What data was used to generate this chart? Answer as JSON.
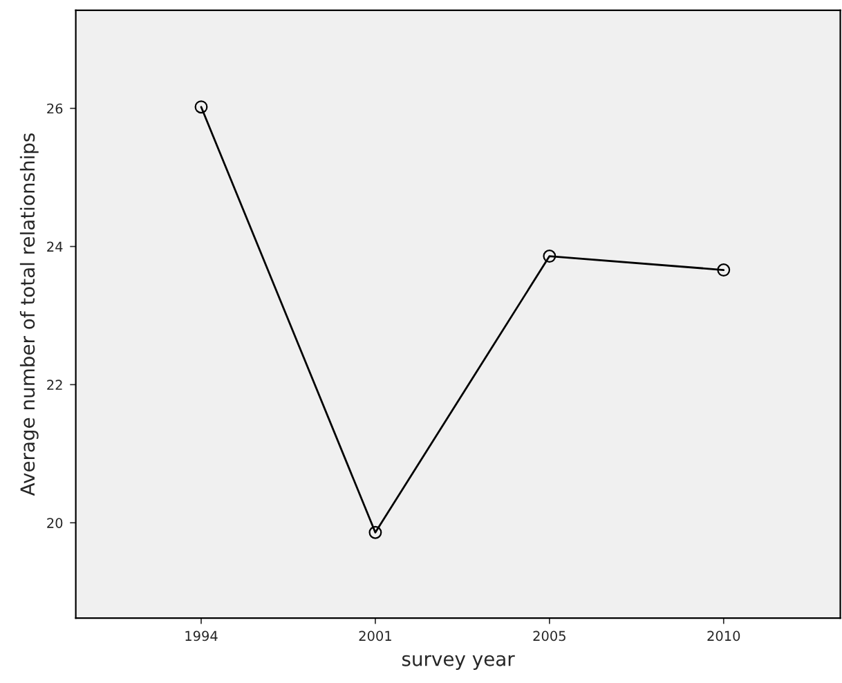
{
  "chart_data": {
    "type": "line",
    "xlabel": "survey year",
    "ylabel": "Average number of total relationships",
    "categories": [
      "1994",
      "2001",
      "2005",
      "2010"
    ],
    "series": [
      {
        "color": "#000000",
        "values": [
          26.02,
          19.86,
          23.86,
          23.66
        ]
      }
    ],
    "ylim": [
      18.62,
      27.42
    ],
    "yticks": [
      20,
      22,
      24,
      26
    ],
    "marker": "circle",
    "line_style": "solid",
    "grid": false,
    "legend": false
  }
}
